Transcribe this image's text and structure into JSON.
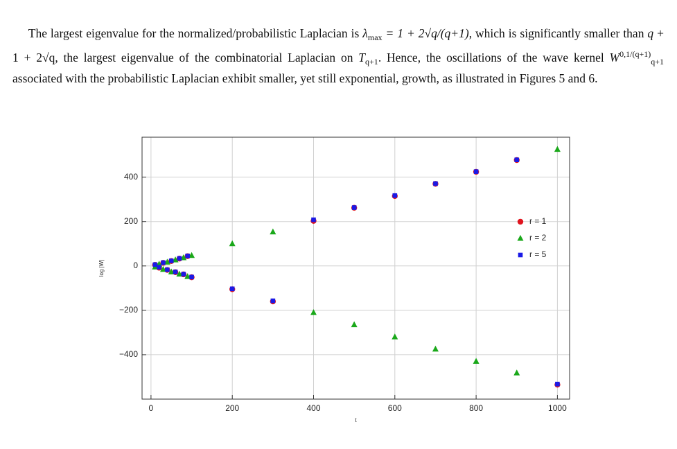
{
  "paragraph": [
    {
      "text": "The largest eigenvalue for the normalized/probabilistic Laplacian is ",
      "style": "r"
    },
    {
      "text": "λ",
      "style": "i"
    },
    {
      "text": "max",
      "style": "sub"
    },
    {
      "text": " = 1 + 2√q/(q+1)",
      "style": "i"
    },
    {
      "text": ", which is significantly smaller than ",
      "style": "r"
    },
    {
      "text": "q",
      "style": "i"
    },
    {
      "text": " + 1 + 2√q",
      "style": "r"
    },
    {
      "text": ", the largest eigenvalue of the combinatorial Laplacian on ",
      "style": "r"
    },
    {
      "text": "T",
      "style": "i"
    },
    {
      "text": "q+1",
      "style": "sub"
    },
    {
      "text": ". Hence, the oscillations of the wave kernel ",
      "style": "r"
    },
    {
      "text": "W",
      "style": "i"
    },
    {
      "text": "0,1/(q+1)",
      "style": "sup"
    },
    {
      "text": "q+1",
      "style": "sub"
    },
    {
      "text": " associated with the probabilistic Laplacian exhibit smaller, yet still exponential, growth, as illustrated in Figures 5 and 6.",
      "style": "r"
    }
  ],
  "chart_data": {
    "type": "scatter",
    "x_label": "t",
    "y_label": "log |W|",
    "xlim": [
      -22,
      1030
    ],
    "ylim": [
      -600,
      580
    ],
    "xticks": [
      0,
      200,
      400,
      600,
      800,
      1000
    ],
    "yticks": [
      {
        "value": -400,
        "label": "−400"
      },
      {
        "value": -200,
        "label": "−200"
      },
      0,
      200,
      400
    ],
    "grid": true,
    "legend": "right",
    "x": [
      10,
      20,
      30,
      40,
      50,
      60,
      70,
      80,
      90,
      100,
      200,
      300,
      400,
      500,
      600,
      700,
      800,
      900,
      1000
    ],
    "series": [
      {
        "name": "r = 1",
        "color": "#e0141e",
        "marker": "circle",
        "values": [
          5,
          -8,
          14,
          -18,
          22,
          -28,
          33,
          -38,
          44,
          -51,
          -105,
          -160,
          203,
          262,
          315,
          370,
          424,
          477,
          -535
        ]
      },
      {
        "name": "r = 2",
        "color": "#1aa81a",
        "marker": "triangle",
        "values": [
          -5,
          8,
          -16,
          17,
          -27,
          27,
          -37,
          37,
          -48,
          47,
          100,
          153,
          -210,
          -265,
          -320,
          -375,
          -430,
          -482,
          525
        ]
      },
      {
        "name": "r = 5",
        "color": "#1a1ae6",
        "marker": "square",
        "values": [
          6,
          -6,
          15,
          -17,
          23,
          -27,
          34,
          -37,
          45,
          -50,
          -103,
          -157,
          208,
          263,
          317,
          371,
          425,
          478,
          -532
        ]
      }
    ]
  }
}
